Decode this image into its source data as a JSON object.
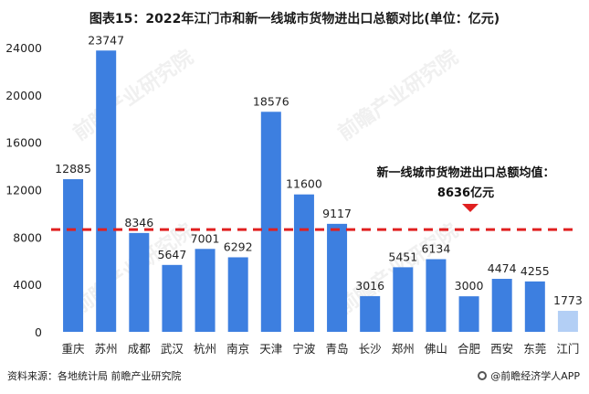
{
  "title": "图表15：2022年江门市和新一线城市货物进出口总额对比(单位：亿元)",
  "source": "资料来源：各地统计局 前瞻产业研究院",
  "brand": "@前瞻经济学人APP",
  "watermark": "前瞻产业研究院",
  "colors": {
    "bar": "#3d7fe0",
    "highlight": "#b3cff5",
    "avg_line": "#e02020"
  },
  "chart_data": {
    "type": "bar",
    "categories": [
      "重庆",
      "苏州",
      "成都",
      "武汉",
      "杭州",
      "南京",
      "天津",
      "宁波",
      "青岛",
      "长沙",
      "郑州",
      "佛山",
      "合肥",
      "西安",
      "东莞",
      "江门"
    ],
    "values": [
      12885,
      23747,
      8346,
      5647,
      7001,
      6292,
      18576,
      11600,
      9117,
      3016,
      5451,
      6134,
      3000,
      4474,
      4255,
      1773
    ],
    "highlight_category": "江门",
    "ylim": [
      0,
      24000
    ],
    "yticks": [
      0,
      4000,
      8000,
      12000,
      16000,
      20000,
      24000
    ],
    "grid": false,
    "average": {
      "value": 8636,
      "label_line1": "新一线城市货物进出口总额均值：",
      "label_line2": "8636亿元"
    }
  }
}
